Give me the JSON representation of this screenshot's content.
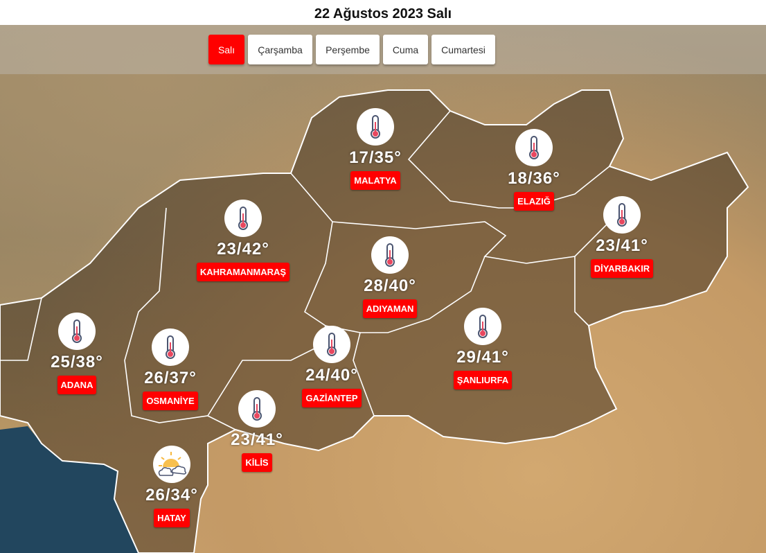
{
  "title": "22 Ağustos 2023 Salı",
  "tabs": [
    {
      "label": "Salı",
      "active": true
    },
    {
      "label": "Çarşamba"
    },
    {
      "label": "Perşembe"
    },
    {
      "label": "Cuma"
    },
    {
      "label": "Cumartesi"
    }
  ],
  "colors": {
    "accent": "#ff0000",
    "border": "#ffffff"
  },
  "cities": [
    {
      "name": "MALATYA",
      "temp": "17/35°",
      "icon": "thermometer-icon"
    },
    {
      "name": "ELAZIĞ",
      "temp": "18/36°",
      "icon": "thermometer-icon"
    },
    {
      "name": "KAHRAMANMARAŞ",
      "temp": "23/42°",
      "icon": "thermometer-icon"
    },
    {
      "name": "DİYARBAKIR",
      "temp": "23/41°",
      "icon": "thermometer-icon"
    },
    {
      "name": "ADIYAMAN",
      "temp": "28/40°",
      "icon": "thermometer-icon"
    },
    {
      "name": "ŞANLIURFA",
      "temp": "29/41°",
      "icon": "thermometer-icon"
    },
    {
      "name": "ADANA",
      "temp": "25/38°",
      "icon": "thermometer-icon"
    },
    {
      "name": "OSMANİYE",
      "temp": "26/37°",
      "icon": "thermometer-icon"
    },
    {
      "name": "GAZİANTEP",
      "temp": "24/40°",
      "icon": "thermometer-icon"
    },
    {
      "name": "KİLİS",
      "temp": "23/41°",
      "icon": "thermometer-icon"
    },
    {
      "name": "HATAY",
      "temp": "26/34°",
      "icon": "partly-cloudy-icon"
    }
  ]
}
